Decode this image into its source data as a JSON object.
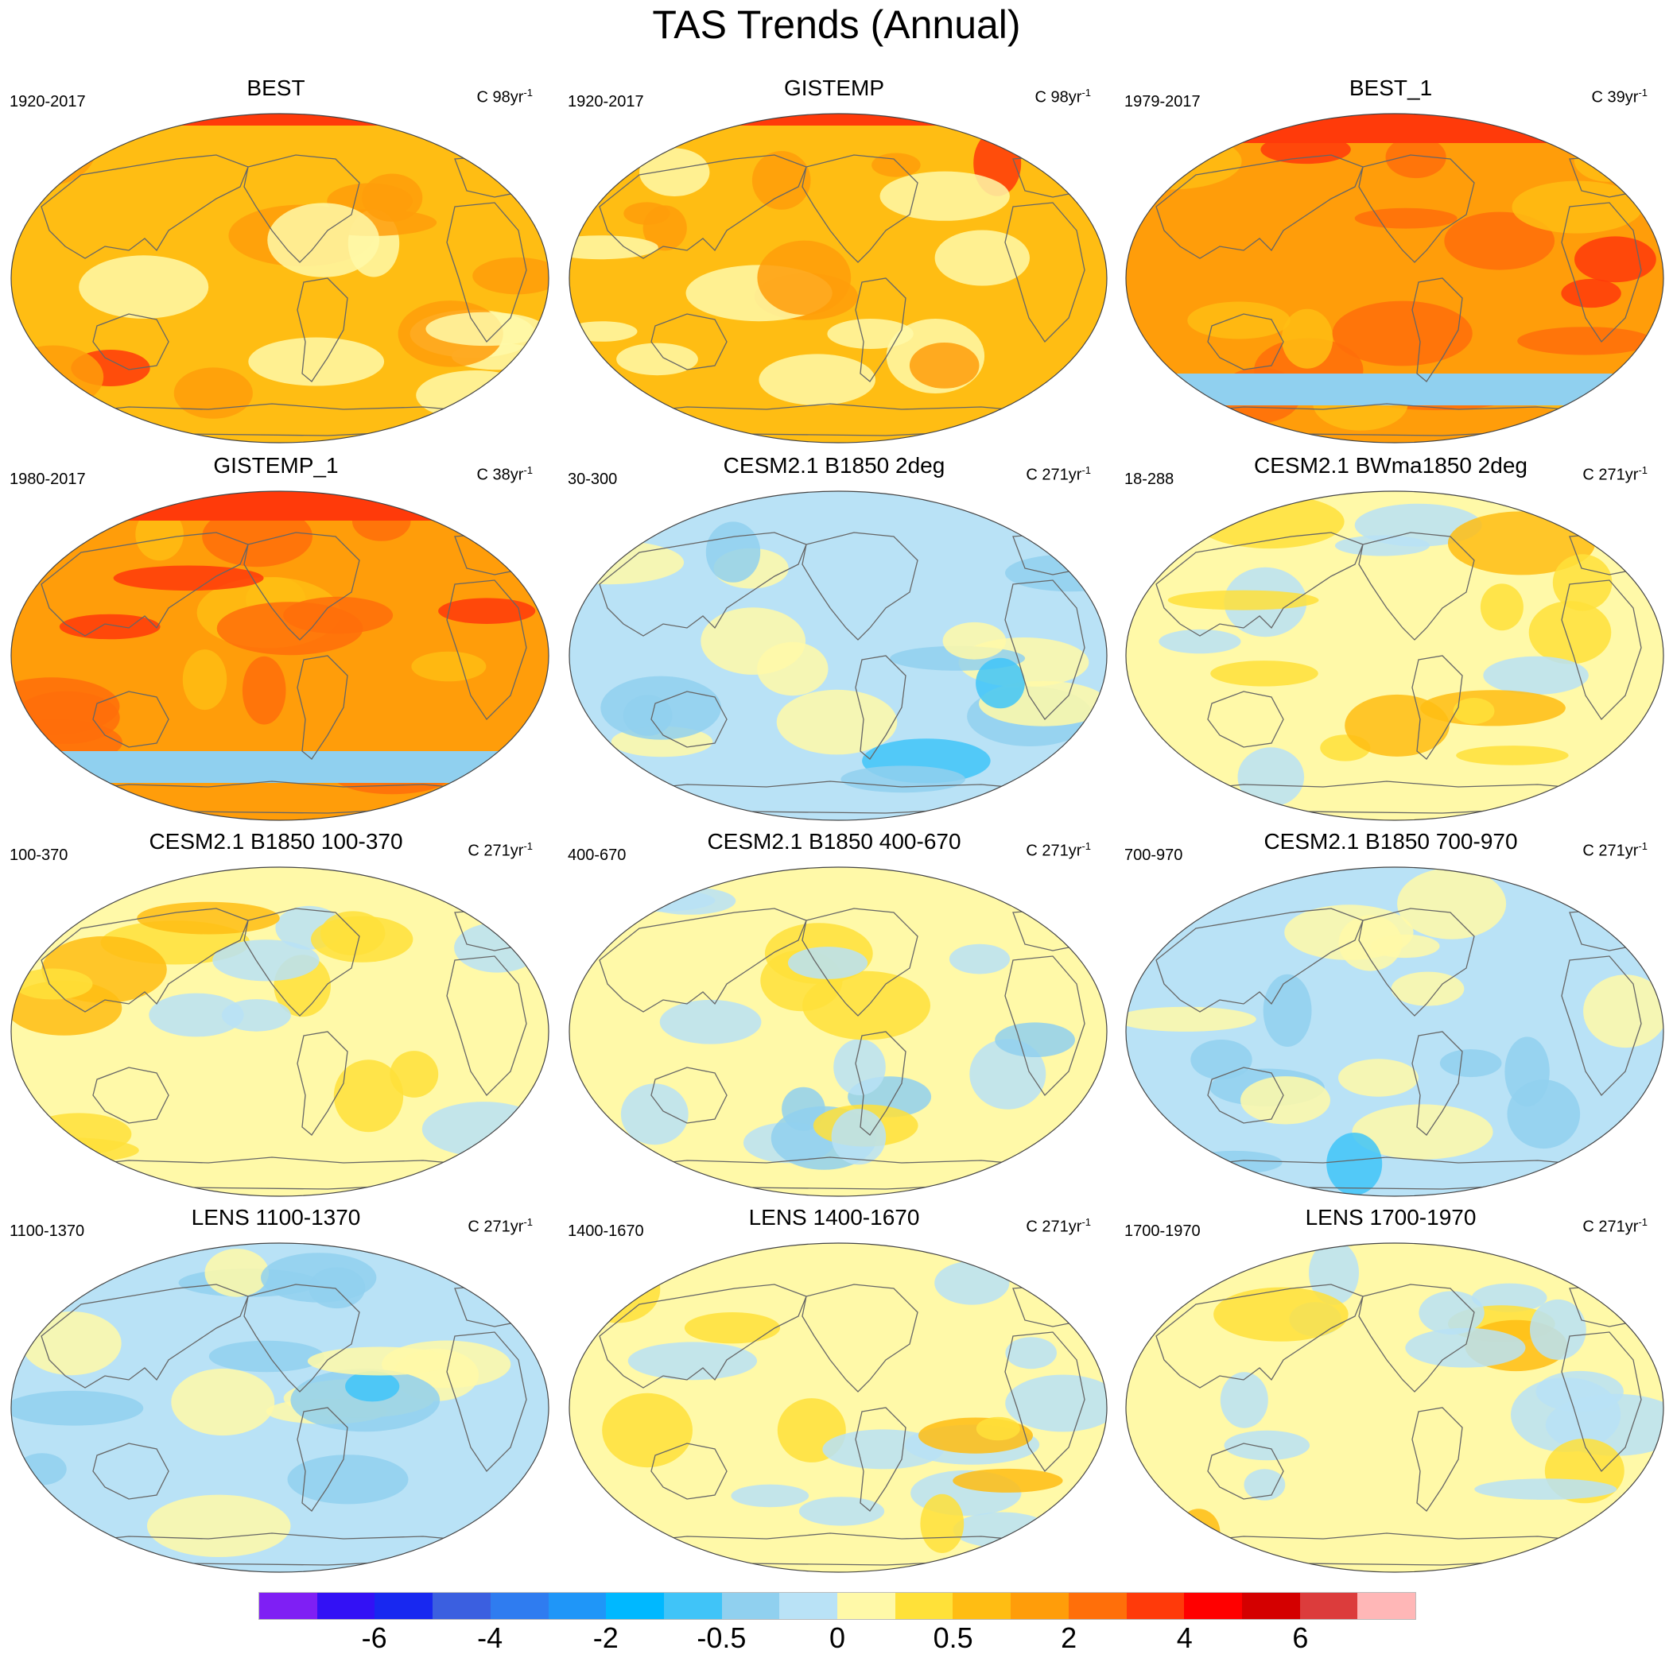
{
  "title": "TAS Trends (Annual)",
  "panels": [
    {
      "title": "BEST",
      "left": "1920-2017",
      "unit": "C 98yr",
      "exp": "-1",
      "scheme": "warm"
    },
    {
      "title": "GISTEMP",
      "left": "1920-2017",
      "unit": "C 98yr",
      "exp": "-1",
      "scheme": "warm"
    },
    {
      "title": "BEST_1",
      "left": "1979-2017",
      "unit": "C 39yr",
      "exp": "-1",
      "scheme": "hot"
    },
    {
      "title": "GISTEMP_1",
      "left": "1980-2017",
      "unit": "C 38yr",
      "exp": "-1",
      "scheme": "hot"
    },
    {
      "title": "CESM2.1 B1850 2deg",
      "left": "30-300",
      "unit": "C 271yr",
      "exp": "-1",
      "scheme": "cool"
    },
    {
      "title": "CESM2.1 BWma1850 2deg",
      "left": "18-288",
      "unit": "C 271yr",
      "exp": "-1",
      "scheme": "mild"
    },
    {
      "title": "CESM2.1 B1850 100-370",
      "left": "100-370",
      "unit": "C 271yr",
      "exp": "-1",
      "scheme": "mild"
    },
    {
      "title": "CESM2.1 B1850 400-670",
      "left": "400-670",
      "unit": "C 271yr",
      "exp": "-1",
      "scheme": "mixed"
    },
    {
      "title": "CESM2.1 B1850 700-970",
      "left": "700-970",
      "unit": "C 271yr",
      "exp": "-1",
      "scheme": "cool"
    },
    {
      "title": "LENS 1100-1370",
      "left": "1100-1370",
      "unit": "C 271yr",
      "exp": "-1",
      "scheme": "cool"
    },
    {
      "title": "LENS 1400-1670",
      "left": "1400-1670",
      "unit": "C 271yr",
      "exp": "-1",
      "scheme": "mild"
    },
    {
      "title": "LENS 1700-1970",
      "left": "1700-1970",
      "unit": "C 271yr",
      "exp": "-1",
      "scheme": "mild"
    }
  ],
  "colorbar": {
    "colors": [
      "#7f1ff4",
      "#3311f5",
      "#1828f0",
      "#3b5fe0",
      "#2f7cf0",
      "#1f96f8",
      "#00b8ff",
      "#40c4f8",
      "#90d0ef",
      "#b9e2f6",
      "#fff9a8",
      "#ffe139",
      "#ffbd13",
      "#ff9d0a",
      "#ff6f0a",
      "#ff3a0a",
      "#ff0000",
      "#d40000",
      "#dc3c3c",
      "#ffb7b7"
    ],
    "labels": [
      {
        "text": "-6",
        "boundary": 2
      },
      {
        "text": "-4",
        "boundary": 4
      },
      {
        "text": "-2",
        "boundary": 6
      },
      {
        "text": "-0.5",
        "boundary": 8
      },
      {
        "text": "0",
        "boundary": 10
      },
      {
        "text": "0.5",
        "boundary": 12
      },
      {
        "text": "2",
        "boundary": 14
      },
      {
        "text": "4",
        "boundary": 16
      },
      {
        "text": "6",
        "boundary": 18
      }
    ]
  },
  "palettes": {
    "warm": {
      "base": "#ffbd13",
      "high": "#ff9d0a",
      "low": "#fff9a8",
      "extreme": "#ff3a0a"
    },
    "hot": {
      "base": "#ff9d0a",
      "high": "#ff6f0a",
      "low": "#ffbd13",
      "extreme": "#ff3a0a",
      "cold": "#90d0ef"
    },
    "cool": {
      "base": "#b9e2f6",
      "high": "#fff9a8",
      "low": "#90d0ef",
      "extreme": "#40c4f8"
    },
    "mild": {
      "base": "#fff9a8",
      "high": "#ffe139",
      "low": "#b9e2f6",
      "extreme": "#ffbd13"
    },
    "mixed": {
      "base": "#fff9a8",
      "high": "#ffe139",
      "low": "#b9e2f6",
      "extreme": "#90d0ef"
    }
  }
}
